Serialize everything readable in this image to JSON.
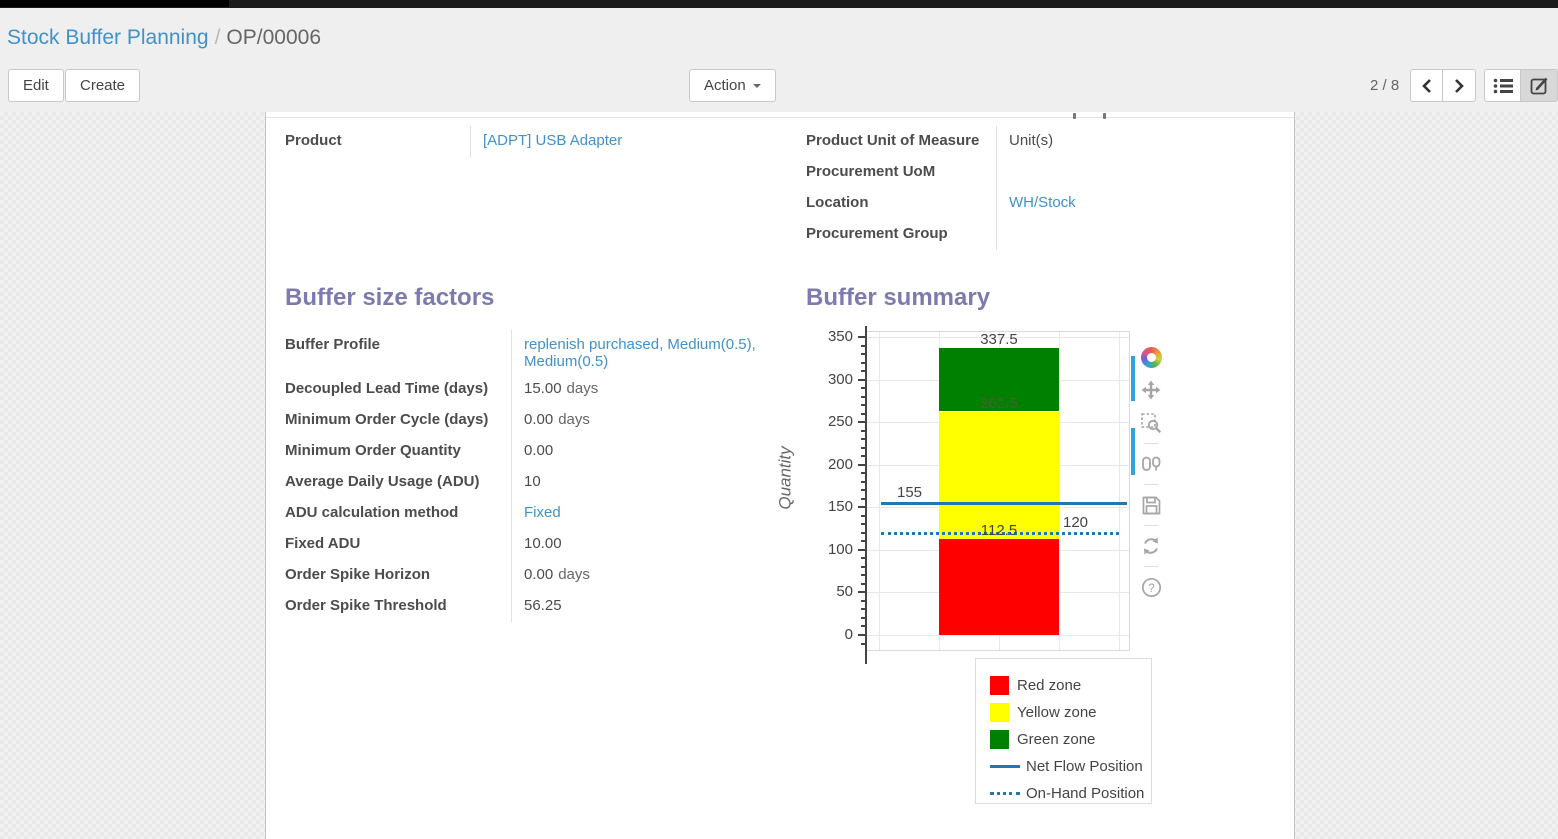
{
  "breadcrumb": {
    "parent": "Stock Buffer Planning",
    "separator": "/",
    "current": "OP/00006"
  },
  "toolbar": {
    "edit_label": "Edit",
    "create_label": "Create",
    "action_label": "Action",
    "pager": "2 / 8",
    "icons": [
      "caret-down",
      "chevron-left",
      "chevron-right",
      "list-view",
      "form-view"
    ]
  },
  "colors": {
    "link": "#4191ca",
    "heading": "#7c7bad",
    "red_zone": "#ff0000",
    "yellow_zone": "#ffff00",
    "green_zone": "#008000",
    "flow_line": "#1f77b4",
    "modebar_indicator": "#29a6dd"
  },
  "form": {
    "left_fields": [
      {
        "label": "Product",
        "value": "[ADPT] USB Adapter",
        "link": true
      }
    ],
    "right_fields": [
      {
        "label": "Product Unit of Measure",
        "value": "Unit(s)",
        "link": false
      },
      {
        "label": "Procurement UoM",
        "value": "",
        "link": false
      },
      {
        "label": "Location",
        "value": "WH/Stock",
        "link": true
      },
      {
        "label": "Procurement Group",
        "value": "",
        "link": false
      }
    ],
    "buffer_factors": {
      "title": "Buffer size factors",
      "fields": [
        {
          "label": "Buffer Profile",
          "value": "replenish purchased, Medium(0.5), Medium(0.5)",
          "link": true
        },
        {
          "label": "Decoupled Lead Time (days)",
          "value": "15.00",
          "suffix": "days"
        },
        {
          "label": "Minimum Order Cycle (days)",
          "value": "0.00",
          "suffix": "days"
        },
        {
          "label": "Minimum Order Quantity",
          "value": "0.00"
        },
        {
          "label": "Average Daily Usage (ADU)",
          "value": "10"
        },
        {
          "label": "ADU calculation method",
          "value": "Fixed",
          "link": true
        },
        {
          "label": "Fixed ADU",
          "value": "10.00"
        },
        {
          "label": "Order Spike Horizon",
          "value": "0.00",
          "suffix": "days"
        },
        {
          "label": "Order Spike Threshold",
          "value": "56.25"
        }
      ]
    },
    "buffer_summary_title": "Buffer summary"
  },
  "chart_data": {
    "type": "bar",
    "title": "Buffer summary",
    "xlabel": "",
    "ylabel": "Quantity",
    "ylim": [
      0,
      350
    ],
    "yticks": [
      0,
      50,
      100,
      150,
      200,
      250,
      300,
      350
    ],
    "minor_tick_step": 10,
    "grid": true,
    "zones": [
      {
        "name": "Red zone",
        "from": 0,
        "to": 112.5,
        "color": "#ff0000"
      },
      {
        "name": "Yellow zone",
        "from": 112.5,
        "to": 262.5,
        "color": "#ffff00"
      },
      {
        "name": "Green zone",
        "from": 262.5,
        "to": 337.5,
        "color": "#008000"
      }
    ],
    "value_labels": [
      {
        "text": "337.5",
        "value": 337.5,
        "color": "#444444"
      },
      {
        "text": "262.5",
        "value": 262.5,
        "color": "#4e5e2e"
      },
      {
        "text": "112.5",
        "value": 112.5,
        "color": "#444444"
      }
    ],
    "lines": [
      {
        "name": "Net Flow Position",
        "value": 155,
        "style": "solid",
        "color": "#1f77b4",
        "label": "155",
        "label_align": "left"
      },
      {
        "name": "On-Hand Position",
        "value": 120,
        "style": "dotted",
        "color": "#1f77b4",
        "label": "120",
        "label_align": "right"
      }
    ],
    "legend": [
      "Red zone",
      "Yellow zone",
      "Green zone",
      "Net Flow Position",
      "On-Hand Position"
    ],
    "legend_position": "below-right",
    "modebar_icons": [
      "plotly-logo",
      "pan",
      "box-zoom",
      "compare-hover",
      "save",
      "reset",
      "help"
    ]
  }
}
